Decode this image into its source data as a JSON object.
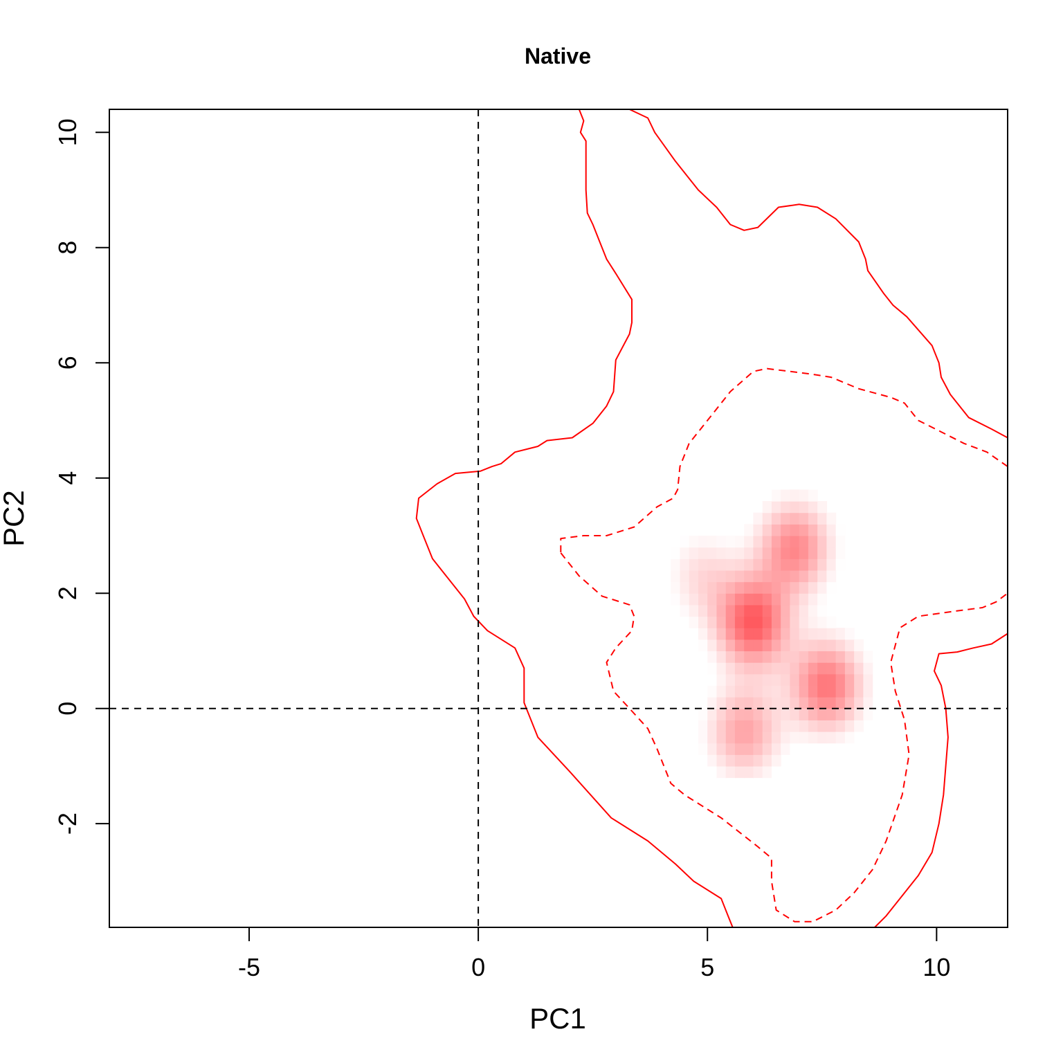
{
  "chart_data": {
    "type": "contour",
    "title": "Native",
    "xlabel": "PC1",
    "ylabel": "PC2",
    "xlim": [
      -8.05,
      11.55
    ],
    "ylim": [
      -3.8,
      10.4
    ],
    "x_ticks": [
      {
        "value": -5,
        "label": "-5"
      },
      {
        "value": 0,
        "label": "0"
      },
      {
        "value": 5,
        "label": "5"
      },
      {
        "value": 10,
        "label": "10"
      }
    ],
    "y_ticks": [
      {
        "value": -2,
        "label": "-2"
      },
      {
        "value": 0,
        "label": "0"
      },
      {
        "value": 2,
        "label": "2"
      },
      {
        "value": 4,
        "label": "4"
      },
      {
        "value": 6,
        "label": "6"
      },
      {
        "value": 8,
        "label": "8"
      },
      {
        "value": 10,
        "label": "10"
      }
    ],
    "reference_lines": {
      "x": 0,
      "y": 0
    },
    "colors": {
      "contour": "#ff0000",
      "density": "#ff5a5f",
      "reference": "#000000"
    },
    "density_peaks": [
      {
        "x": 6.0,
        "y": 1.5,
        "weight": 1.0
      },
      {
        "x": 7.6,
        "y": 0.4,
        "weight": 0.85
      },
      {
        "x": 6.9,
        "y": 2.8,
        "weight": 0.75
      },
      {
        "x": 5.8,
        "y": -0.4,
        "weight": 0.6
      },
      {
        "x": 4.9,
        "y": 2.3,
        "weight": 0.3
      }
    ],
    "contours": [
      {
        "level": "outer",
        "style": "solid",
        "points": [
          [
            2.2,
            10.4
          ],
          [
            2.3,
            10.2
          ],
          [
            2.23,
            10.0
          ],
          [
            2.35,
            9.85
          ],
          [
            2.35,
            9.5
          ],
          [
            2.35,
            9.0
          ],
          [
            2.38,
            8.6
          ],
          [
            2.5,
            8.4
          ],
          [
            2.65,
            8.1
          ],
          [
            2.8,
            7.8
          ],
          [
            3.0,
            7.55
          ],
          [
            3.35,
            7.1
          ],
          [
            3.35,
            6.7
          ],
          [
            3.3,
            6.5
          ],
          [
            3.0,
            6.05
          ],
          [
            2.95,
            5.5
          ],
          [
            2.8,
            5.25
          ],
          [
            2.5,
            4.95
          ],
          [
            2.05,
            4.7
          ],
          [
            1.5,
            4.65
          ],
          [
            1.3,
            4.55
          ],
          [
            0.8,
            4.45
          ],
          [
            0.5,
            4.25
          ],
          [
            0.3,
            4.2
          ],
          [
            0.05,
            4.12
          ],
          [
            -0.5,
            4.08
          ],
          [
            -0.9,
            3.9
          ],
          [
            -1.3,
            3.65
          ],
          [
            -1.35,
            3.3
          ],
          [
            -1.2,
            3.0
          ],
          [
            -1.0,
            2.6
          ],
          [
            -0.6,
            2.2
          ],
          [
            -0.3,
            1.9
          ],
          [
            -0.1,
            1.6
          ],
          [
            0.2,
            1.35
          ],
          [
            0.8,
            1.05
          ],
          [
            1.0,
            0.7
          ],
          [
            1.0,
            0.1
          ],
          [
            1.3,
            -0.5
          ],
          [
            2.0,
            -1.1
          ],
          [
            2.9,
            -1.9
          ],
          [
            3.7,
            -2.3
          ],
          [
            4.3,
            -2.7
          ],
          [
            4.7,
            -3.0
          ],
          [
            5.3,
            -3.3
          ],
          [
            5.45,
            -3.6
          ],
          [
            5.55,
            -3.8
          ]
        ]
      },
      {
        "level": "outer",
        "style": "solid",
        "points": [
          [
            3.3,
            10.4
          ],
          [
            3.7,
            10.25
          ],
          [
            3.85,
            10.0
          ],
          [
            4.3,
            9.5
          ],
          [
            4.8,
            9.0
          ],
          [
            5.2,
            8.7
          ],
          [
            5.5,
            8.4
          ],
          [
            5.8,
            8.3
          ],
          [
            6.1,
            8.35
          ],
          [
            6.55,
            8.7
          ],
          [
            7.0,
            8.75
          ],
          [
            7.4,
            8.7
          ],
          [
            7.8,
            8.5
          ],
          [
            8.3,
            8.1
          ],
          [
            8.45,
            7.8
          ],
          [
            8.5,
            7.6
          ],
          [
            8.85,
            7.2
          ],
          [
            9.05,
            7.0
          ],
          [
            9.35,
            6.8
          ],
          [
            9.9,
            6.3
          ],
          [
            10.05,
            6.0
          ],
          [
            10.1,
            5.75
          ],
          [
            10.3,
            5.45
          ],
          [
            10.7,
            5.05
          ],
          [
            11.2,
            4.85
          ],
          [
            11.55,
            4.7
          ]
        ]
      },
      {
        "level": "outer",
        "style": "solid",
        "points": [
          [
            11.55,
            1.3
          ],
          [
            11.2,
            1.12
          ],
          [
            10.8,
            1.05
          ],
          [
            10.45,
            0.98
          ],
          [
            10.05,
            0.95
          ],
          [
            9.95,
            0.65
          ],
          [
            10.1,
            0.4
          ],
          [
            10.2,
            0.0
          ],
          [
            10.25,
            -0.5
          ],
          [
            10.2,
            -1.0
          ],
          [
            10.15,
            -1.5
          ],
          [
            10.05,
            -2.0
          ],
          [
            9.9,
            -2.5
          ],
          [
            9.6,
            -2.9
          ],
          [
            9.3,
            -3.2
          ],
          [
            8.9,
            -3.6
          ],
          [
            8.65,
            -3.8
          ]
        ]
      },
      {
        "level": "inner",
        "style": "dashed",
        "points": [
          [
            1.8,
            2.7
          ],
          [
            2.2,
            2.3
          ],
          [
            2.7,
            1.95
          ],
          [
            3.3,
            1.8
          ],
          [
            3.4,
            1.6
          ],
          [
            3.35,
            1.35
          ],
          [
            3.0,
            1.05
          ],
          [
            2.8,
            0.8
          ],
          [
            2.95,
            0.3
          ],
          [
            3.3,
            0.0
          ],
          [
            3.7,
            -0.35
          ],
          [
            3.9,
            -0.7
          ],
          [
            4.2,
            -1.3
          ],
          [
            4.5,
            -1.5
          ],
          [
            4.9,
            -1.7
          ],
          [
            5.3,
            -1.9
          ],
          [
            6.1,
            -2.4
          ],
          [
            6.4,
            -2.6
          ],
          [
            6.4,
            -3.0
          ],
          [
            6.5,
            -3.5
          ],
          [
            6.9,
            -3.7
          ],
          [
            7.3,
            -3.7
          ],
          [
            7.8,
            -3.5
          ],
          [
            8.2,
            -3.2
          ],
          [
            8.6,
            -2.8
          ],
          [
            8.9,
            -2.3
          ],
          [
            9.25,
            -1.5
          ],
          [
            9.4,
            -0.8
          ],
          [
            9.3,
            -0.2
          ],
          [
            9.1,
            0.3
          ],
          [
            9.0,
            0.8
          ],
          [
            9.2,
            1.4
          ],
          [
            9.6,
            1.6
          ],
          [
            10.5,
            1.7
          ],
          [
            11.0,
            1.75
          ],
          [
            11.3,
            1.85
          ],
          [
            11.55,
            2.0
          ]
        ]
      },
      {
        "level": "inner",
        "style": "dashed",
        "points": [
          [
            11.55,
            4.2
          ],
          [
            11.1,
            4.45
          ],
          [
            10.6,
            4.6
          ],
          [
            10.1,
            4.8
          ],
          [
            9.6,
            5.0
          ],
          [
            9.3,
            5.3
          ],
          [
            9.0,
            5.4
          ],
          [
            8.3,
            5.55
          ],
          [
            7.7,
            5.75
          ],
          [
            7.3,
            5.8
          ],
          [
            6.8,
            5.85
          ],
          [
            6.3,
            5.9
          ],
          [
            6.0,
            5.85
          ],
          [
            5.5,
            5.5
          ],
          [
            5.1,
            5.1
          ],
          [
            4.6,
            4.6
          ],
          [
            4.4,
            4.2
          ],
          [
            4.35,
            3.8
          ],
          [
            4.25,
            3.65
          ],
          [
            3.9,
            3.5
          ],
          [
            3.4,
            3.15
          ],
          [
            2.8,
            3.0
          ],
          [
            2.3,
            3.0
          ],
          [
            1.8,
            2.95
          ],
          [
            1.8,
            2.7
          ]
        ]
      }
    ]
  }
}
